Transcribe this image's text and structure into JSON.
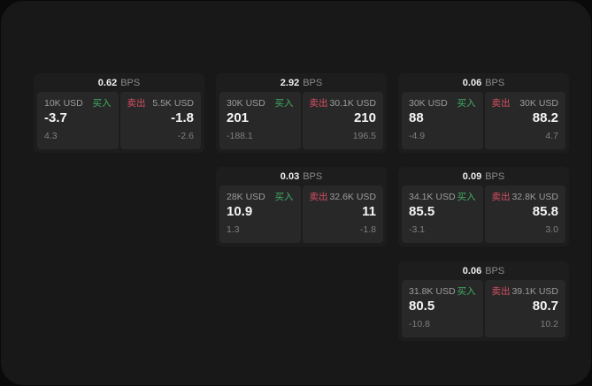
{
  "labels": {
    "bps": "BPS",
    "buy": "买入",
    "sell": "卖出"
  },
  "colors": {
    "buy_accent": "#3fae63",
    "sell_accent": "#d84f63",
    "card_bg": "#1d1d1d",
    "panel_bg": "#282828",
    "container_bg": "#181818",
    "page_bg": "#0a0a0a"
  },
  "cards": [
    {
      "bps": "0.62",
      "buy": {
        "size": "10K USD",
        "value": "-3.7",
        "delta": "4.3"
      },
      "sell": {
        "size": "5.5K USD",
        "value": "-1.8",
        "delta": "-2.6"
      }
    },
    {
      "bps": "2.92",
      "buy": {
        "size": "30K USD",
        "value": "201",
        "delta": "-188.1"
      },
      "sell": {
        "size": "30.1K USD",
        "value": "210",
        "delta": "196.5"
      }
    },
    {
      "bps": "0.06",
      "buy": {
        "size": "30K USD",
        "value": "88",
        "delta": "-4.9"
      },
      "sell": {
        "size": "30K USD",
        "value": "88.2",
        "delta": "4.7"
      }
    },
    {
      "bps": "0.03",
      "buy": {
        "size": "28K USD",
        "value": "10.9",
        "delta": "1.3"
      },
      "sell": {
        "size": "32.6K USD",
        "value": "11",
        "delta": "-1.8"
      }
    },
    {
      "bps": "0.09",
      "buy": {
        "size": "34.1K USD",
        "value": "85.5",
        "delta": "-3.1"
      },
      "sell": {
        "size": "32.8K USD",
        "value": "85.8",
        "delta": "3.0"
      }
    },
    {
      "bps": "0.06",
      "buy": {
        "size": "31.8K USD",
        "value": "80.5",
        "delta": "-10.8"
      },
      "sell": {
        "size": "39.1K USD",
        "value": "80.7",
        "delta": "10.2"
      }
    }
  ]
}
